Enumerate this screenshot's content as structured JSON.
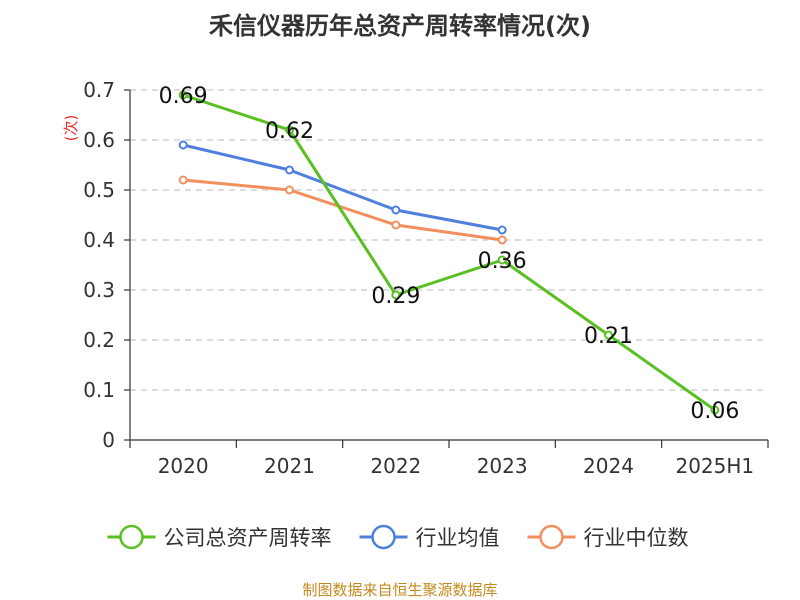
{
  "chart_data": {
    "type": "line",
    "title": "禾信仪器历年总资产周转率情况(次)",
    "ylabel": "(次)",
    "xlabel": "",
    "categories": [
      "2020",
      "2021",
      "2022",
      "2023",
      "2024",
      "2025H1"
    ],
    "ylim": [
      0,
      0.7
    ],
    "yticks": [
      0,
      0.1,
      0.2,
      0.3,
      0.4,
      0.5,
      0.6,
      0.7
    ],
    "grid": true,
    "legend_position": "bottom",
    "series": [
      {
        "name": "公司总资产周转率",
        "color": "#5ac021",
        "values": [
          0.69,
          0.62,
          0.29,
          0.36,
          0.21,
          0.06
        ],
        "labels": [
          "0.69",
          "0.62",
          "0.29",
          "0.36",
          "0.21",
          "0.06"
        ]
      },
      {
        "name": "行业均值",
        "color": "#4f7fdd",
        "values": [
          0.59,
          0.54,
          0.46,
          0.42,
          null,
          null
        ]
      },
      {
        "name": "行业中位数",
        "color": "#f38e5e",
        "values": [
          0.52,
          0.5,
          0.43,
          0.4,
          null,
          null
        ]
      }
    ]
  },
  "source": "制图数据来自恒生聚源数据库"
}
